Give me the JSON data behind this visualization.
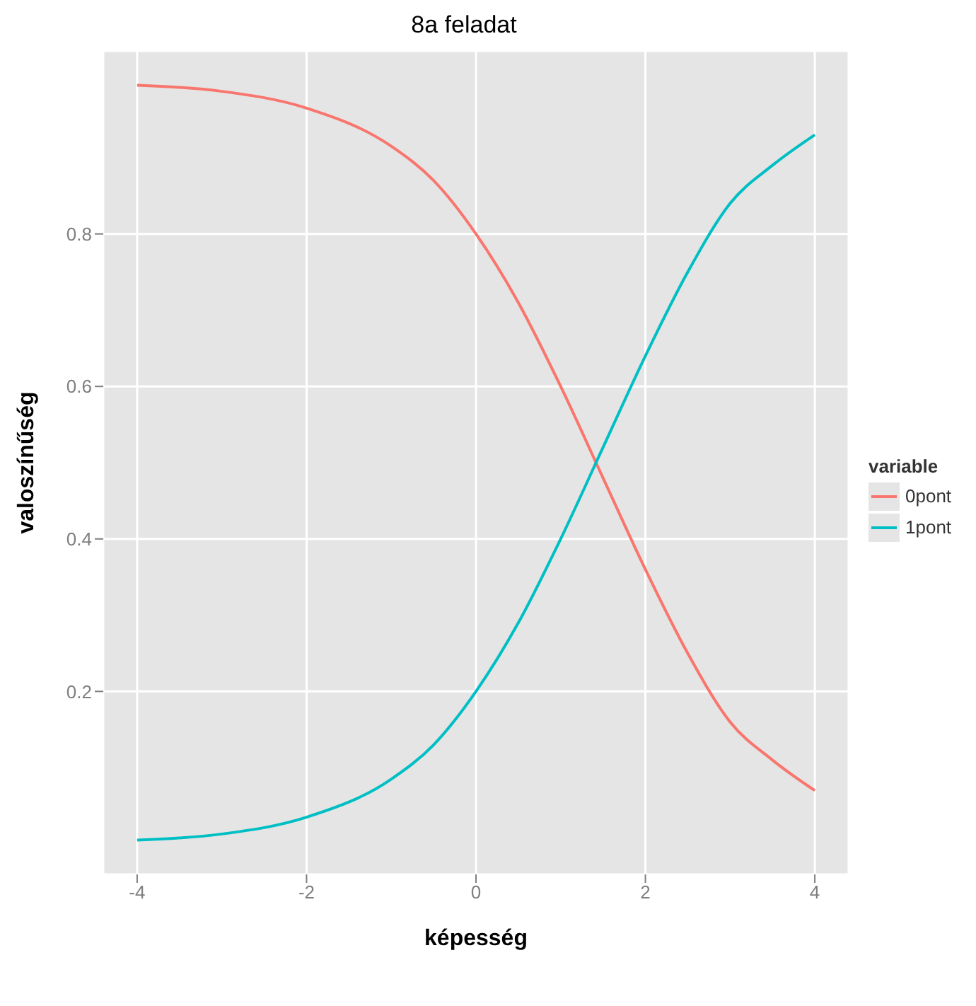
{
  "chart_data": {
    "type": "line",
    "title": "8a feladat",
    "xlabel": "képesség",
    "ylabel": "valoszínűség",
    "legend_title": "variable",
    "legend": "right",
    "grid": true,
    "line_style": "solid",
    "marker": "none",
    "x": [
      -4,
      -3,
      -2,
      -1,
      -0.5,
      0,
      0.5,
      1,
      1.5,
      2,
      2.5,
      3,
      3.5,
      4
    ],
    "series": [
      {
        "name": "0pont",
        "color": "#f8766d",
        "values": [
          0.995,
          0.987,
          0.965,
          0.915,
          0.87,
          0.8,
          0.71,
          0.6,
          0.48,
          0.36,
          0.25,
          0.16,
          0.11,
          0.07
        ]
      },
      {
        "name": "1pont",
        "color": "#00bfc4",
        "values": [
          0.005,
          0.013,
          0.035,
          0.085,
          0.13,
          0.2,
          0.29,
          0.4,
          0.52,
          0.64,
          0.75,
          0.84,
          0.89,
          0.93
        ]
      }
    ],
    "xlim": [
      -4.4,
      4.4
    ],
    "xticks": [
      -4,
      -2,
      0,
      2,
      4
    ],
    "ylim": [
      -0.04,
      1.04
    ],
    "yticks": [
      0.2,
      0.4,
      0.6,
      0.8
    ]
  }
}
